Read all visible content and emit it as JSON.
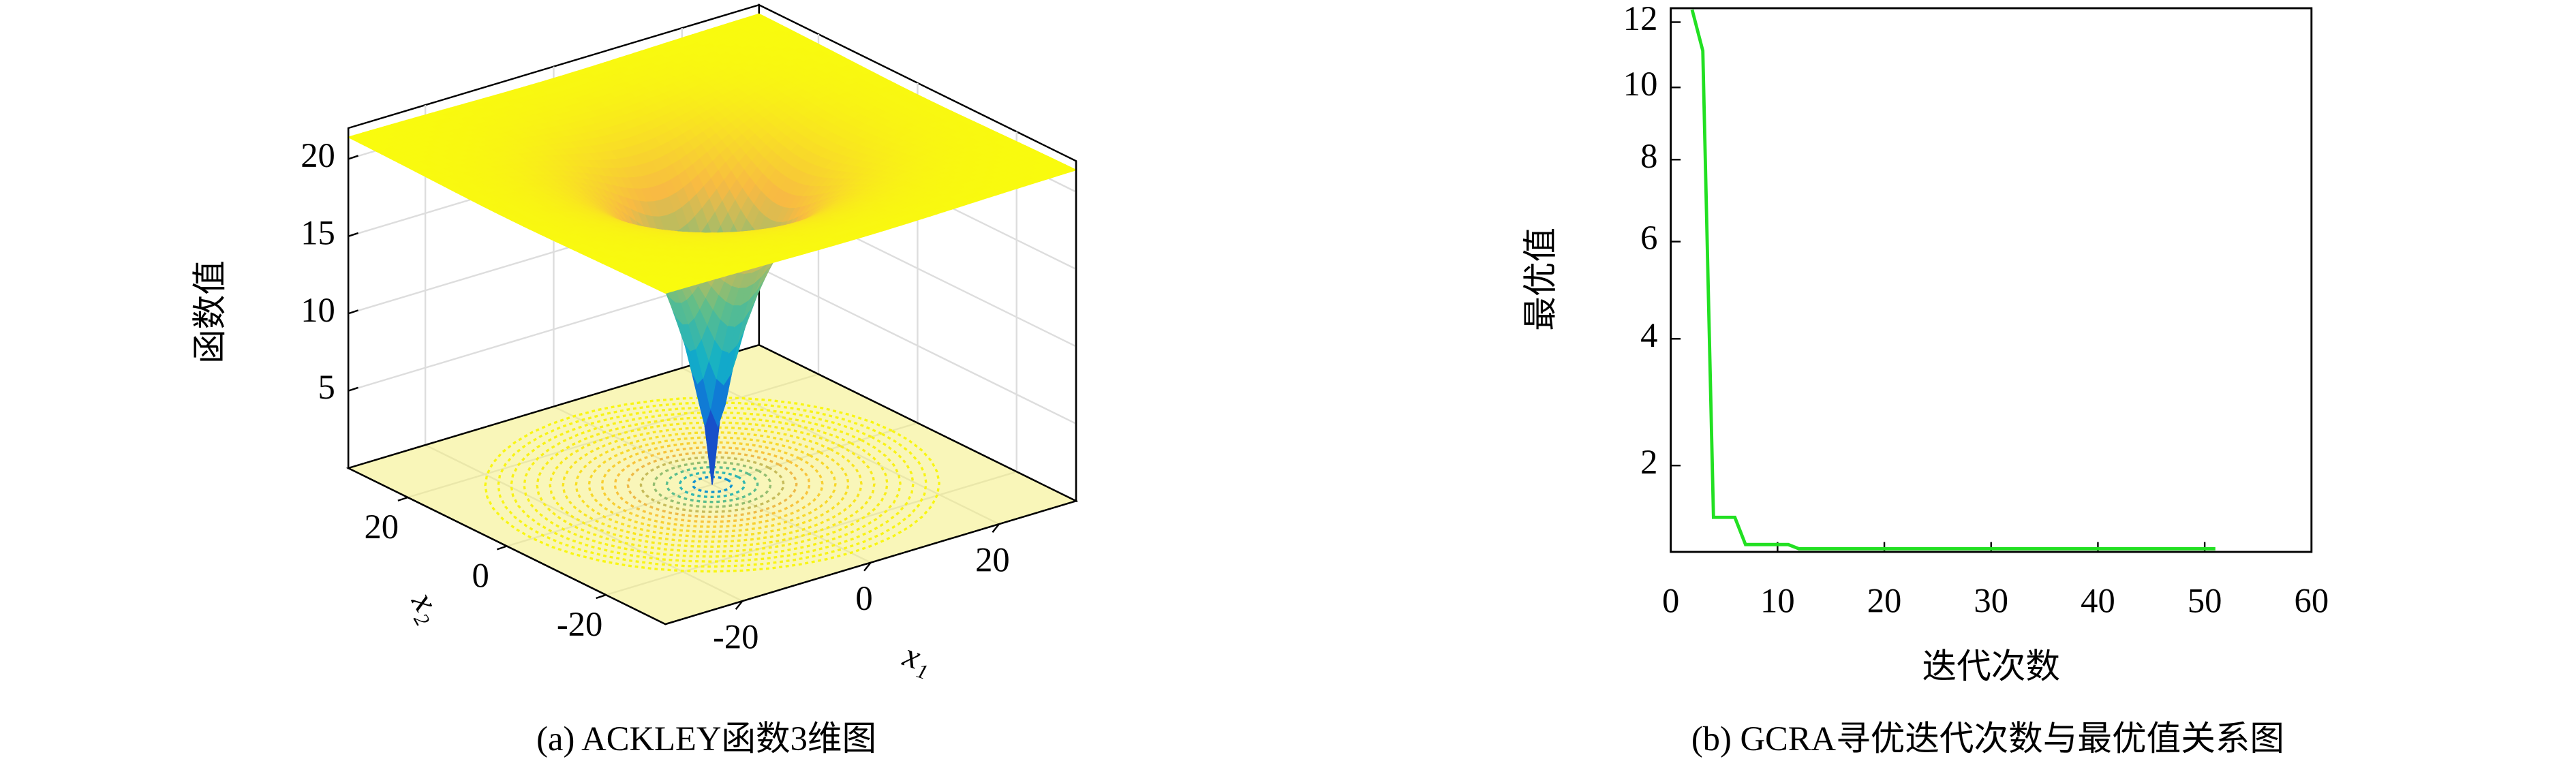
{
  "chart_data": [
    {
      "type": "surface",
      "caption": "(a) ACKLEY函数3维图",
      "zlabel": "函数值",
      "xlabel": "x₁",
      "ylabel": "x₂",
      "xlim": [
        -32,
        32
      ],
      "ylim": [
        -32,
        32
      ],
      "zlim": [
        0,
        22
      ],
      "xticks": [
        -20,
        0,
        20
      ],
      "yticks": [
        -20,
        0,
        20
      ],
      "zticks": [
        5,
        10,
        15,
        20
      ],
      "grid": true
    },
    {
      "type": "line",
      "caption": "(b) GCRA寻优迭代次数与最优值关系图",
      "xlabel": "迭代次数",
      "ylabel": "最优值",
      "x": [
        2,
        3,
        4,
        6,
        7,
        11,
        12,
        51
      ],
      "values": [
        12.4,
        11.1,
        1.38,
        1.38,
        1.1,
        1.1,
        1.06,
        1.06
      ],
      "color": "#22e022",
      "xlim": [
        0,
        60
      ],
      "xticks": [
        0,
        10,
        20,
        30,
        40,
        50,
        60
      ],
      "ylim": [
        1.03,
        12.45
      ],
      "yticks": [
        2,
        4,
        6,
        8,
        10,
        12
      ],
      "yscale": "sqrt",
      "grid": false
    }
  ]
}
